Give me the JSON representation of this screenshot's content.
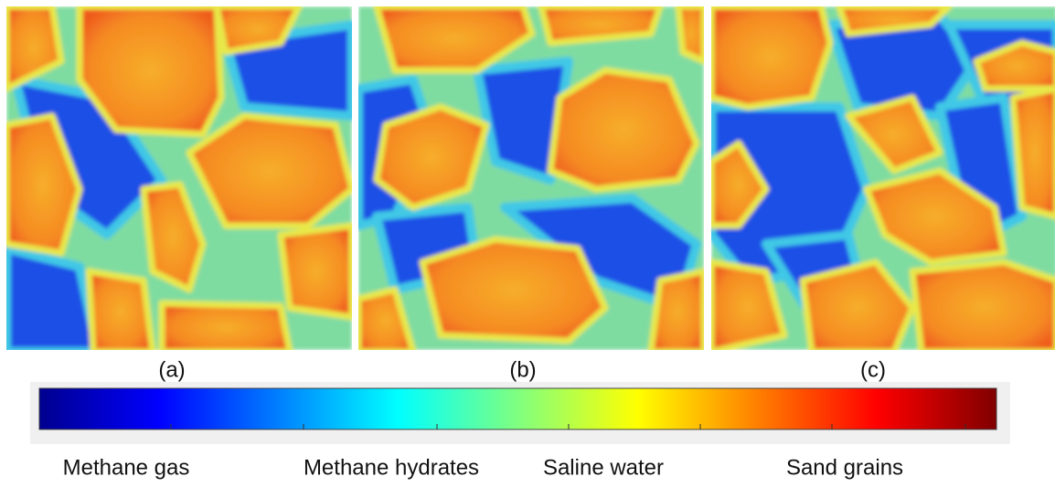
{
  "panels": [
    {
      "label": "(a)"
    },
    {
      "label": "(b)"
    },
    {
      "label": "(c)"
    }
  ],
  "colorbar": {
    "labels": [
      "Methane gas",
      "Methane hydrates",
      "Saline water",
      "Sand grains"
    ]
  }
}
